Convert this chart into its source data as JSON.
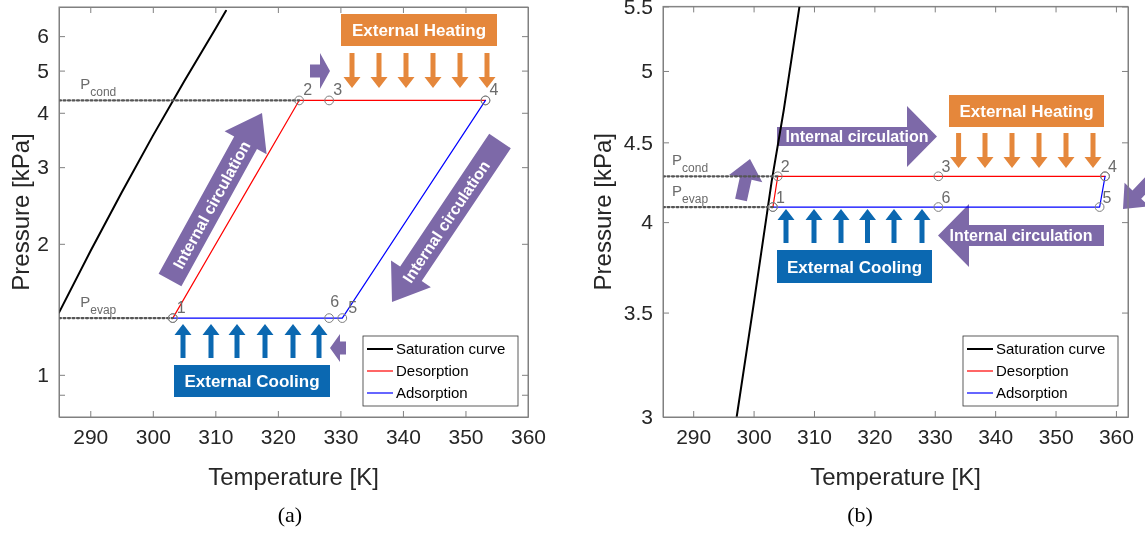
{
  "chart_data": [
    {
      "type": "line",
      "xlabel": "Temperature [K]",
      "ylabel": "Pressure [kPa]",
      "log": "y",
      "legend": "bottom right",
      "xlim": [
        285,
        360
      ],
      "xticks": [
        290,
        300,
        310,
        320,
        330,
        340,
        350,
        360
      ],
      "ylim": [
        0.8,
        7
      ],
      "yticks": [
        {
          "value": 0.9,
          "label": null
        },
        1,
        2,
        3,
        4,
        5,
        6
      ],
      "series": [
        {
          "name": "Saturation curve",
          "color": "#000000",
          "x": [
            285,
            290,
            295,
            300,
            305,
            310,
            311.7
          ],
          "values": [
            1.39,
            1.92,
            2.62,
            3.54,
            4.72,
            6.23,
            6.86
          ]
        },
        {
          "name": "Desorption",
          "color": "#ff0000",
          "marker": "circle",
          "x": [
            303.2,
            323.4,
            328.2,
            353.2
          ],
          "values": [
            1.35,
            4.27,
            4.27,
            4.27
          ]
        },
        {
          "name": "Adsorption",
          "color": "#0000ff",
          "marker": "circle",
          "x": [
            353.2,
            330.3,
            328.2,
            303.2
          ],
          "values": [
            4.27,
            1.35,
            1.35,
            1.35
          ]
        },
        {
          "color": "#555555",
          "line_style": "dotted",
          "x": [
            285,
            323.4
          ],
          "values": [
            4.27,
            4.27
          ]
        },
        {
          "color": "#555555",
          "line_style": "dotted",
          "x": [
            285,
            303.2
          ],
          "values": [
            1.35,
            1.35
          ]
        }
      ],
      "annotations": [
        {
          "text": "P$_{cond}$",
          "x": 288.4,
          "y": 4.27
        },
        {
          "text": "P$_{evap}$",
          "x": 288.4,
          "y": 1.35
        },
        {
          "text": "1",
          "x": 303.2,
          "y": 1.35
        },
        {
          "text": "2",
          "x": 323.4,
          "y": 4.27
        },
        {
          "text": "3",
          "x": 328.2,
          "y": 4.27
        },
        {
          "text": "4",
          "x": 353.2,
          "y": 4.27
        },
        {
          "text": "5",
          "x": 330.3,
          "y": 1.35
        },
        {
          "text": "6",
          "x": 328.2,
          "y": 1.35
        },
        "External Heating",
        "Internal circulation",
        "Internal circulation",
        "External Cooling",
        "(a)"
      ]
    },
    {
      "type": "line",
      "xlabel": "Temperature [K]",
      "ylabel": "Pressure [kPa]",
      "log": "y",
      "legend": "bottom right",
      "xlim": [
        285,
        362
      ],
      "xticks": [
        290,
        300,
        310,
        320,
        330,
        340,
        350,
        360
      ],
      "ylim": [
        3,
        5.5
      ],
      "yticks": [
        3,
        3.5,
        4,
        4.5,
        5,
        5.5
      ],
      "series": [
        {
          "name": "Saturation curve",
          "color": "#000000",
          "x": [
            297.2,
            300,
            303,
            305,
            307.6
          ],
          "values": [
            3,
            3.54,
            4.25,
            4.72,
            5.5
          ]
        },
        {
          "name": "Desorption",
          "color": "#ff0000",
          "marker": "circle",
          "x": [
            303.2,
            304,
            330.6,
            358.2
          ],
          "values": [
            4.09,
            4.28,
            4.28,
            4.28
          ]
        },
        {
          "name": "Adsorption",
          "color": "#0000ff",
          "marker": "circle",
          "x": [
            358.2,
            357.3,
            330.6,
            303.2
          ],
          "values": [
            4.28,
            4.09,
            4.09,
            4.09
          ]
        },
        {
          "color": "#555555",
          "line_style": "dotted",
          "x": [
            285,
            304
          ],
          "values": [
            4.28,
            4.28
          ]
        },
        {
          "color": "#555555",
          "line_style": "dotted",
          "x": [
            285,
            303.2
          ],
          "values": [
            4.09,
            4.09
          ]
        }
      ],
      "annotations": [
        {
          "text": "P$_{cond}$",
          "x": 286.5,
          "y": 4.28
        },
        {
          "text": "P$_{evap}$",
          "x": 286.5,
          "y": 4.09
        },
        {
          "text": "1",
          "x": 303.2,
          "y": 4.09
        },
        {
          "text": "2",
          "x": 304,
          "y": 4.28
        },
        {
          "text": "3",
          "x": 330.6,
          "y": 4.28
        },
        {
          "text": "4",
          "x": 358.2,
          "y": 4.28
        },
        {
          "text": "5",
          "x": 357.3,
          "y": 4.09
        },
        {
          "text": "6",
          "x": 330.6,
          "y": 4.09
        },
        "External Heating",
        "Internal circulation",
        "Internal circulation",
        "External Cooling",
        "(b)"
      ]
    }
  ]
}
